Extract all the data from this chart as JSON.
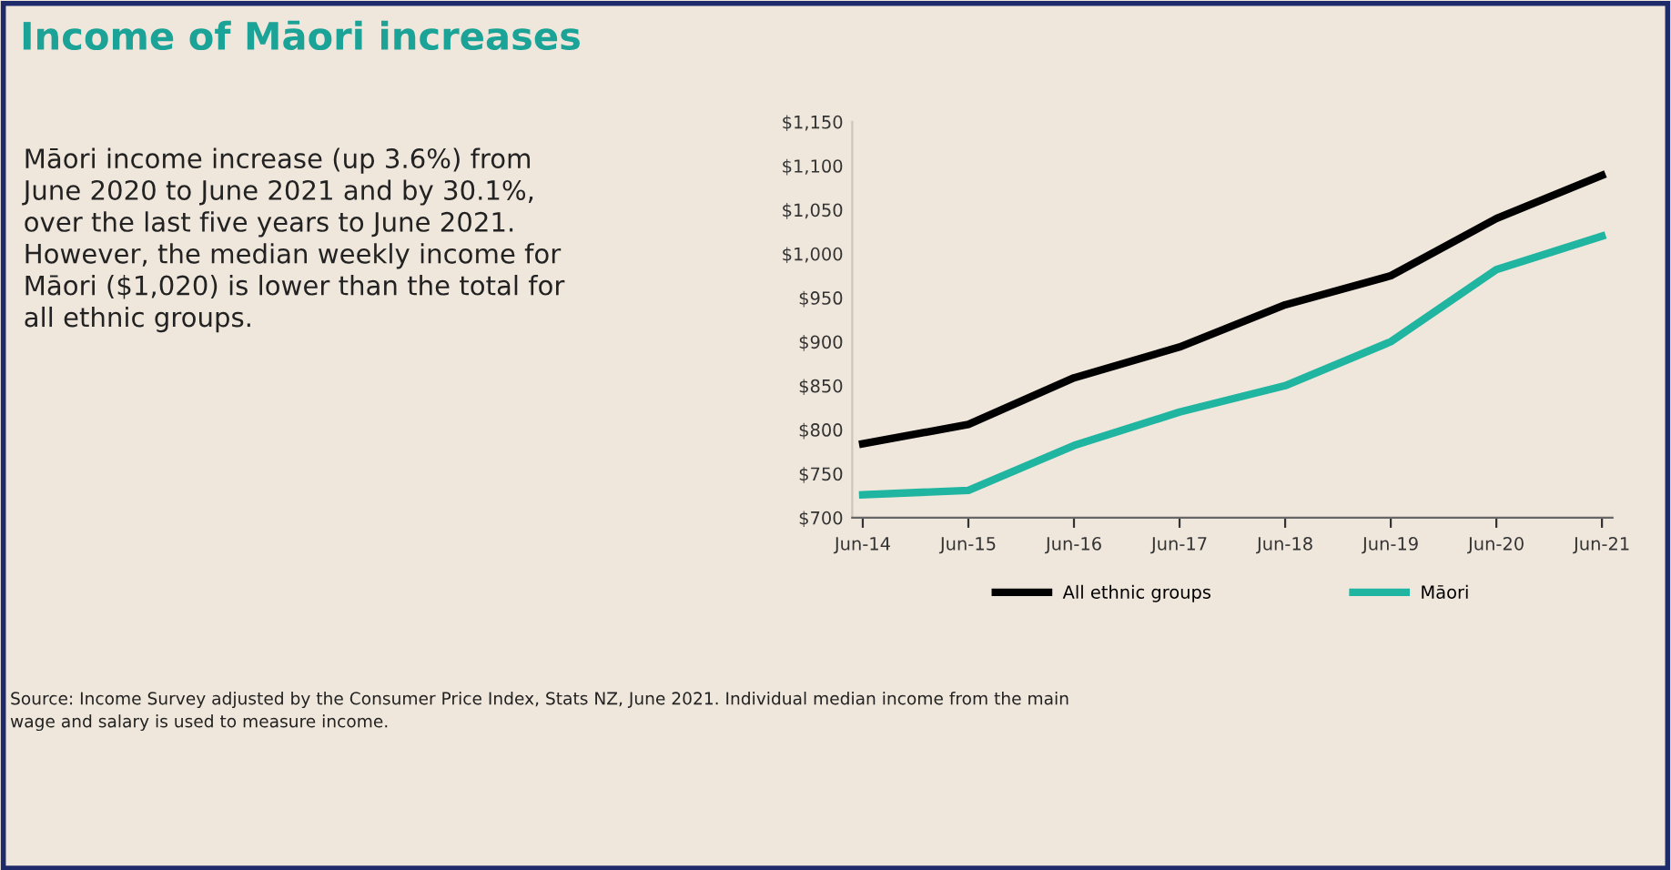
{
  "chart_data": {
    "type": "line",
    "title": "Income of Māori increases",
    "categories": [
      "Jun-14",
      "Jun-15",
      "Jun-16",
      "Jun-17",
      "Jun-18",
      "Jun-19",
      "Jun-20",
      "Jun-21"
    ],
    "series": [
      {
        "name": "All ethnic groups",
        "color": "#000000",
        "values": [
          784,
          806,
          859,
          894,
          942,
          975,
          1040,
          1089
        ]
      },
      {
        "name": "Māori",
        "color": "#1fb5a0",
        "values": [
          726,
          731,
          782,
          820,
          850,
          900,
          982,
          1020
        ]
      }
    ],
    "ylim": [
      700,
      1150
    ],
    "yticks": [
      {
        "value": 700,
        "label": "$700"
      },
      {
        "value": 750,
        "label": "$750"
      },
      {
        "value": 800,
        "label": "$800"
      },
      {
        "value": 850,
        "label": "$850"
      },
      {
        "value": 900,
        "label": "$900"
      },
      {
        "value": 950,
        "label": "$950"
      },
      {
        "value": 1000,
        "label": "$1,000"
      },
      {
        "value": 1050,
        "label": "$1,050"
      },
      {
        "value": 1100,
        "label": "$1,100"
      },
      {
        "value": 1150,
        "label": "$1,150"
      }
    ],
    "grid": false,
    "legend": "bottom",
    "marker": "none",
    "line_style": "solid",
    "annotations": [
      "Māori income increase (up 3.6%) from\nJune 2020 to June 2021 and by 30.1%,\nover the last five years to June 2021.\nHowever, the median weekly income for\nMāori ($1,020) is lower than the total for\nall ethnic groups.",
      "Source: Income Survey adjusted by the Consumer Price Index, Stats NZ, June 2021. Individual median income from the main\nwage and salary is used to measure income."
    ]
  }
}
